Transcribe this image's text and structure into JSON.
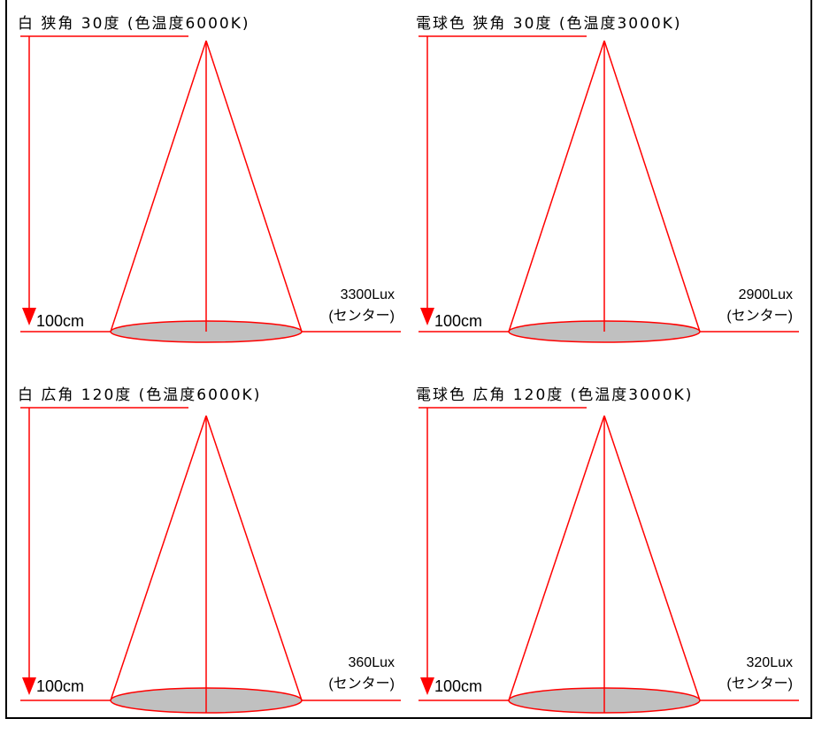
{
  "colors": {
    "beam": "#ff0000",
    "ellipse_fill": "#c0c0c0",
    "frame": "#000000"
  },
  "panels": [
    {
      "title": "白  狭角  30度 (色温度6000K)",
      "distance": "100cm",
      "lux": "3300Lux",
      "lux_note": "(センター)"
    },
    {
      "title": "電球色  狭角  30度 (色温度3000K)",
      "distance": "100cm",
      "lux": "2900Lux",
      "lux_note": "(センター)"
    },
    {
      "title": "白  広角  120度 (色温度6000K)",
      "distance": "100cm",
      "lux": "360Lux",
      "lux_note": "(センター)"
    },
    {
      "title": "電球色  広角  120度 (色温度3000K)",
      "distance": "100cm",
      "lux": "320Lux",
      "lux_note": "(センター)"
    }
  ]
}
